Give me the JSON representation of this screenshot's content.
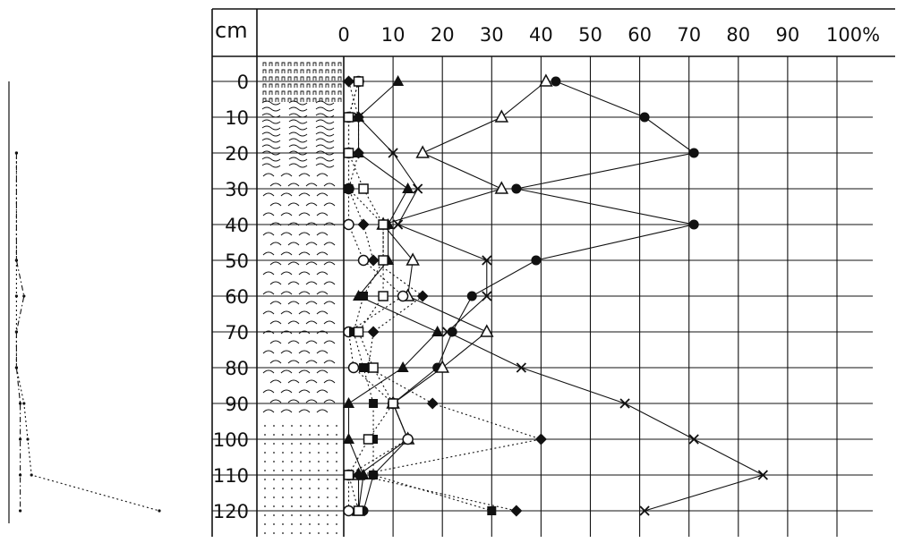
{
  "chart_data": {
    "type": "line",
    "title": "",
    "subtitle": "",
    "xlabel": "",
    "ylabel": "",
    "y_unit_label": "cm",
    "x_tick_labels": [
      "0",
      "10",
      "20",
      "30",
      "40",
      "50",
      "60",
      "70",
      "80",
      "90",
      "100%"
    ],
    "y_tick_labels": [
      "0",
      "10",
      "20",
      "30",
      "40",
      "50",
      "60",
      "70",
      "80",
      "90",
      "100",
      "110",
      "120"
    ],
    "xlim": [
      0,
      100
    ],
    "ylim": [
      0,
      120
    ],
    "y_inverted": true,
    "grid": true,
    "legend": "none",
    "line_color": "#111111",
    "depth_levels": [
      0,
      10,
      20,
      30,
      40,
      50,
      60,
      70,
      80,
      90,
      100,
      110,
      120
    ],
    "series": [
      {
        "marker": "filled-circle",
        "line": "solid",
        "values": [
          43,
          61,
          71,
          35,
          71,
          39,
          26,
          22,
          19,
          10,
          13,
          6,
          4
        ]
      },
      {
        "marker": "cross",
        "line": "solid",
        "values": [
          3,
          3,
          10,
          15,
          11,
          29,
          29,
          21,
          36,
          57,
          71,
          85,
          61
        ]
      },
      {
        "marker": "open-triangle",
        "line": "solid",
        "values": [
          41,
          32,
          16,
          32,
          8,
          14,
          13,
          29,
          20,
          10,
          13,
          3,
          3
        ]
      },
      {
        "marker": "filled-triangle",
        "line": "solid",
        "values": [
          11,
          3,
          3,
          13,
          9,
          9,
          3,
          19,
          12,
          1,
          1,
          4,
          3
        ]
      },
      {
        "marker": "filled-diamond",
        "line": "dotted",
        "values": [
          1,
          3,
          3,
          1,
          4,
          6,
          16,
          6,
          5,
          18,
          40,
          3,
          35
        ]
      },
      {
        "marker": "open-circle",
        "line": "dotted",
        "values": [
          3,
          1,
          1,
          1,
          1,
          4,
          12,
          1,
          2,
          10,
          13,
          1,
          1
        ]
      },
      {
        "marker": "filled-square",
        "line": "dotted",
        "values": [
          3,
          1,
          1,
          1,
          8,
          8,
          4,
          2,
          4,
          6,
          6,
          6,
          30
        ]
      },
      {
        "marker": "open-square",
        "line": "dotted",
        "values": [
          3,
          1,
          1,
          4,
          8,
          8,
          8,
          3,
          6,
          10,
          5,
          1,
          3
        ]
      }
    ]
  },
  "side_profile": {
    "type": "line",
    "line_color": "#111111",
    "depth_levels": [
      20,
      50,
      60,
      70,
      80,
      90,
      100,
      110,
      120
    ],
    "series": [
      {
        "line": "dotted",
        "values": [
          2,
          2,
          2,
          2,
          2,
          4,
          5,
          6,
          40
        ]
      },
      {
        "line": "dashdot",
        "values": [
          2,
          2,
          4,
          2,
          2,
          3,
          3,
          3,
          3
        ]
      }
    ]
  },
  "soil_column": {
    "layers": [
      {
        "from": 0,
        "to": 5,
        "pattern": "grass"
      },
      {
        "from": 5,
        "to": 25,
        "pattern": "waves"
      },
      {
        "from": 25,
        "to": 95,
        "pattern": "arcs"
      },
      {
        "from": 95,
        "to": 120,
        "pattern": "dots"
      }
    ]
  }
}
